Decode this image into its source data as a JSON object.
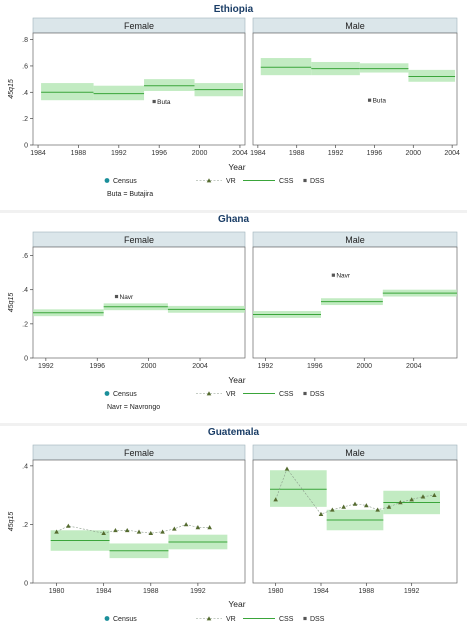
{
  "figure_legend": {
    "census": "Census",
    "vr": "VR",
    "css": "CSS",
    "dss": "DSS"
  },
  "colors": {
    "strip": "#dbe6ea",
    "css_band": "#b7e8b7",
    "css_line": "#3aa53a",
    "vr": "#556b2f",
    "dss": "#555555",
    "census": "#1a8f9a"
  },
  "chart_data": [
    {
      "type": "line",
      "title": "Ethiopia",
      "xlabel": "Year",
      "ylabel": "45q15",
      "ylim": [
        0,
        0.85
      ],
      "yticks": [
        0,
        0.2,
        0.4,
        0.6,
        0.8
      ],
      "ytick_labels": [
        "0",
        ".2",
        ".4",
        ".6",
        ".8"
      ],
      "xlim": [
        1983.5,
        2004.5
      ],
      "xticks": [
        1984,
        1988,
        1992,
        1996,
        2000,
        2004
      ],
      "legend_note": "Buta = Butajira",
      "panels": [
        {
          "name": "Female",
          "css": [
            {
              "x0": 1984.3,
              "x1": 1989.5,
              "y": 0.4,
              "lo": 0.34,
              "hi": 0.47
            },
            {
              "x0": 1989.5,
              "x1": 1994.5,
              "y": 0.39,
              "lo": 0.34,
              "hi": 0.45
            },
            {
              "x0": 1994.5,
              "x1": 1999.5,
              "y": 0.45,
              "lo": 0.41,
              "hi": 0.5
            },
            {
              "x0": 1999.5,
              "x1": 2004.3,
              "y": 0.42,
              "lo": 0.37,
              "hi": 0.47
            }
          ],
          "vr": [],
          "dss": [
            {
              "x": 1995.5,
              "y": 0.33,
              "label": "Buta"
            }
          ]
        },
        {
          "name": "Male",
          "css": [
            {
              "x0": 1984.3,
              "x1": 1989.5,
              "y": 0.59,
              "lo": 0.53,
              "hi": 0.66
            },
            {
              "x0": 1989.5,
              "x1": 1994.5,
              "y": 0.58,
              "lo": 0.53,
              "hi": 0.63
            },
            {
              "x0": 1994.5,
              "x1": 1999.5,
              "y": 0.58,
              "lo": 0.55,
              "hi": 0.62
            },
            {
              "x0": 1999.5,
              "x1": 2004.3,
              "y": 0.52,
              "lo": 0.48,
              "hi": 0.57
            }
          ],
          "vr": [],
          "dss": [
            {
              "x": 1995.5,
              "y": 0.34,
              "label": "Buta"
            }
          ]
        }
      ]
    },
    {
      "type": "line",
      "title": "Ghana",
      "xlabel": "Year",
      "ylabel": "45q15",
      "ylim": [
        0,
        0.65
      ],
      "yticks": [
        0,
        0.2,
        0.4,
        0.6
      ],
      "ytick_labels": [
        "0",
        ".2",
        ".4",
        ".6"
      ],
      "xlim": [
        1991,
        2007.5
      ],
      "xticks": [
        1992,
        1996,
        2000,
        2004
      ],
      "legend_note": "Navr = Navrongo",
      "panels": [
        {
          "name": "Female",
          "css": [
            {
              "x0": 1991,
              "x1": 1996.5,
              "y": 0.265,
              "lo": 0.245,
              "hi": 0.285
            },
            {
              "x0": 1996.5,
              "x1": 2001.5,
              "y": 0.3,
              "lo": 0.28,
              "hi": 0.32
            },
            {
              "x0": 2001.5,
              "x1": 2007.5,
              "y": 0.285,
              "lo": 0.265,
              "hi": 0.305
            }
          ],
          "vr": [],
          "dss": [
            {
              "x": 1997.5,
              "y": 0.36,
              "label": "Navr"
            }
          ]
        },
        {
          "name": "Male",
          "css": [
            {
              "x0": 1991,
              "x1": 1996.5,
              "y": 0.255,
              "lo": 0.235,
              "hi": 0.275
            },
            {
              "x0": 1996.5,
              "x1": 2001.5,
              "y": 0.33,
              "lo": 0.31,
              "hi": 0.35
            },
            {
              "x0": 2001.5,
              "x1": 2007.5,
              "y": 0.38,
              "lo": 0.36,
              "hi": 0.4
            }
          ],
          "vr": [],
          "dss": [
            {
              "x": 1997.5,
              "y": 0.485,
              "label": "Navr"
            }
          ]
        }
      ]
    },
    {
      "type": "line",
      "title": "Guatemala",
      "xlabel": "Year",
      "ylabel": "45q15",
      "ylim": [
        0,
        0.42
      ],
      "yticks": [
        0,
        0.2,
        0.4
      ],
      "ytick_labels": [
        "0",
        ".2",
        ".4"
      ],
      "xlim": [
        1978,
        1996
      ],
      "xticks": [
        1980,
        1984,
        1988,
        1992
      ],
      "legend_note": "",
      "panels": [
        {
          "name": "Female",
          "css": [
            {
              "x0": 1979.5,
              "x1": 1984.5,
              "y": 0.145,
              "lo": 0.11,
              "hi": 0.18
            },
            {
              "x0": 1984.5,
              "x1": 1989.5,
              "y": 0.11,
              "lo": 0.085,
              "hi": 0.135
            },
            {
              "x0": 1989.5,
              "x1": 1994.5,
              "y": 0.14,
              "lo": 0.115,
              "hi": 0.165
            }
          ],
          "vr": [
            {
              "x": 1980,
              "y": 0.175
            },
            {
              "x": 1981,
              "y": 0.195
            },
            {
              "x": 1984,
              "y": 0.17
            },
            {
              "x": 1985,
              "y": 0.18
            },
            {
              "x": 1986,
              "y": 0.18
            },
            {
              "x": 1987,
              "y": 0.175
            },
            {
              "x": 1988,
              "y": 0.17
            },
            {
              "x": 1989,
              "y": 0.175
            },
            {
              "x": 1990,
              "y": 0.185
            },
            {
              "x": 1991,
              "y": 0.2
            },
            {
              "x": 1992,
              "y": 0.19
            },
            {
              "x": 1993,
              "y": 0.19
            }
          ],
          "dss": []
        },
        {
          "name": "Male",
          "css": [
            {
              "x0": 1979.5,
              "x1": 1984.5,
              "y": 0.32,
              "lo": 0.26,
              "hi": 0.385
            },
            {
              "x0": 1984.5,
              "x1": 1989.5,
              "y": 0.215,
              "lo": 0.18,
              "hi": 0.25
            },
            {
              "x0": 1989.5,
              "x1": 1994.5,
              "y": 0.275,
              "lo": 0.235,
              "hi": 0.315
            }
          ],
          "vr": [
            {
              "x": 1980,
              "y": 0.285
            },
            {
              "x": 1981,
              "y": 0.39
            },
            {
              "x": 1984,
              "y": 0.235
            },
            {
              "x": 1985,
              "y": 0.25
            },
            {
              "x": 1986,
              "y": 0.26
            },
            {
              "x": 1987,
              "y": 0.27
            },
            {
              "x": 1988,
              "y": 0.265
            },
            {
              "x": 1989,
              "y": 0.25
            },
            {
              "x": 1990,
              "y": 0.26
            },
            {
              "x": 1991,
              "y": 0.275
            },
            {
              "x": 1992,
              "y": 0.285
            },
            {
              "x": 1993,
              "y": 0.295
            },
            {
              "x": 1994,
              "y": 0.3
            }
          ],
          "dss": []
        }
      ]
    }
  ]
}
